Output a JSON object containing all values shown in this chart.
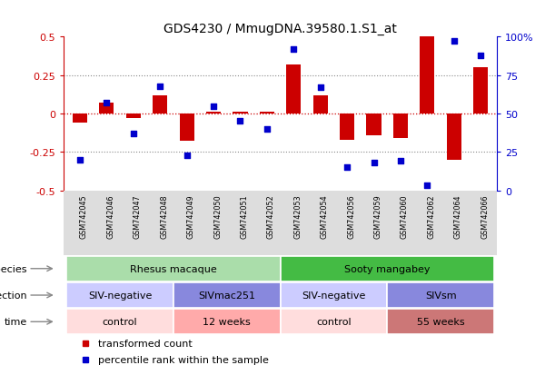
{
  "title": "GDS4230 / MmugDNA.39580.1.S1_at",
  "samples": [
    "GSM742045",
    "GSM742046",
    "GSM742047",
    "GSM742048",
    "GSM742049",
    "GSM742050",
    "GSM742051",
    "GSM742052",
    "GSM742053",
    "GSM742054",
    "GSM742056",
    "GSM742059",
    "GSM742060",
    "GSM742062",
    "GSM742064",
    "GSM742066"
  ],
  "bar_values": [
    -0.06,
    0.07,
    -0.03,
    0.12,
    -0.18,
    0.01,
    0.01,
    0.01,
    0.32,
    0.12,
    -0.17,
    -0.14,
    -0.16,
    0.5,
    -0.3,
    0.3
  ],
  "dot_values": [
    20,
    57,
    37,
    68,
    23,
    55,
    45,
    40,
    92,
    67,
    15,
    18,
    19,
    3,
    97,
    88
  ],
  "ylim_left": [
    -0.5,
    0.5
  ],
  "ylim_right": [
    0,
    100
  ],
  "bar_color": "#cc0000",
  "dot_color": "#0000cc",
  "hline_color": "#cc0000",
  "dotted_color": "#888888",
  "species_labels": [
    {
      "text": "Rhesus macaque",
      "start": 0,
      "end": 8,
      "color": "#aaddaa"
    },
    {
      "text": "Sooty mangabey",
      "start": 8,
      "end": 16,
      "color": "#44bb44"
    }
  ],
  "infection_labels": [
    {
      "text": "SIV-negative",
      "start": 0,
      "end": 4,
      "color": "#ccccff"
    },
    {
      "text": "SIVmac251",
      "start": 4,
      "end": 8,
      "color": "#8888dd"
    },
    {
      "text": "SIV-negative",
      "start": 8,
      "end": 12,
      "color": "#ccccff"
    },
    {
      "text": "SIVsm",
      "start": 12,
      "end": 16,
      "color": "#8888dd"
    }
  ],
  "time_labels": [
    {
      "text": "control",
      "start": 0,
      "end": 4,
      "color": "#ffdddd"
    },
    {
      "text": "12 weeks",
      "start": 4,
      "end": 8,
      "color": "#ffaaaa"
    },
    {
      "text": "control",
      "start": 8,
      "end": 12,
      "color": "#ffdddd"
    },
    {
      "text": "55 weeks",
      "start": 12,
      "end": 16,
      "color": "#cc7777"
    }
  ],
  "row_labels": [
    "species",
    "infection",
    "time"
  ],
  "legend_items": [
    {
      "label": "transformed count",
      "color": "#cc0000"
    },
    {
      "label": "percentile rank within the sample",
      "color": "#0000cc"
    }
  ],
  "yticks_left": [
    -0.5,
    -0.25,
    0,
    0.25,
    0.5
  ],
  "ytick_labels_left": [
    "-0.5",
    "-0.25",
    "0",
    "0.25",
    "0.5"
  ],
  "yticks_right": [
    0,
    25,
    50,
    75,
    100
  ],
  "right_tick_labels": [
    "0",
    "25",
    "50",
    "75",
    "100%"
  ],
  "xtick_bg_color": "#dddddd",
  "bar_width": 0.55
}
